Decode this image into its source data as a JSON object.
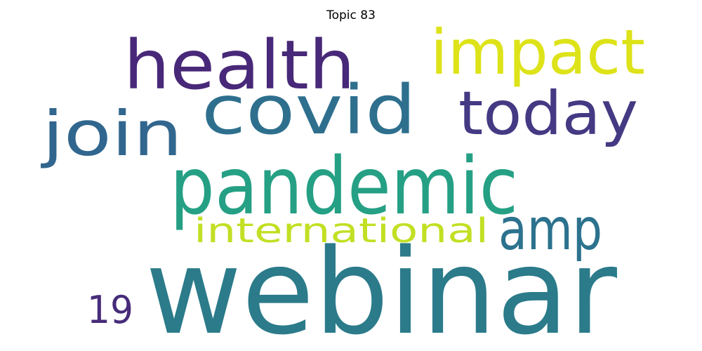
{
  "title": "Topic 83",
  "words": [
    {
      "text": "webinar",
      "color": "#2b7b8a"
    },
    {
      "text": "pandemic",
      "color": "#25a084"
    },
    {
      "text": "covid",
      "color": "#2e6f8e"
    },
    {
      "text": "health",
      "color": "#482878"
    },
    {
      "text": "impact",
      "color": "#dde318"
    },
    {
      "text": "today",
      "color": "#443983"
    },
    {
      "text": "join",
      "color": "#31668e"
    },
    {
      "text": "amp",
      "color": "#2c728e"
    },
    {
      "text": "international",
      "color": "#c2df23"
    },
    {
      "text": "19",
      "color": "#472c7a"
    }
  ]
}
